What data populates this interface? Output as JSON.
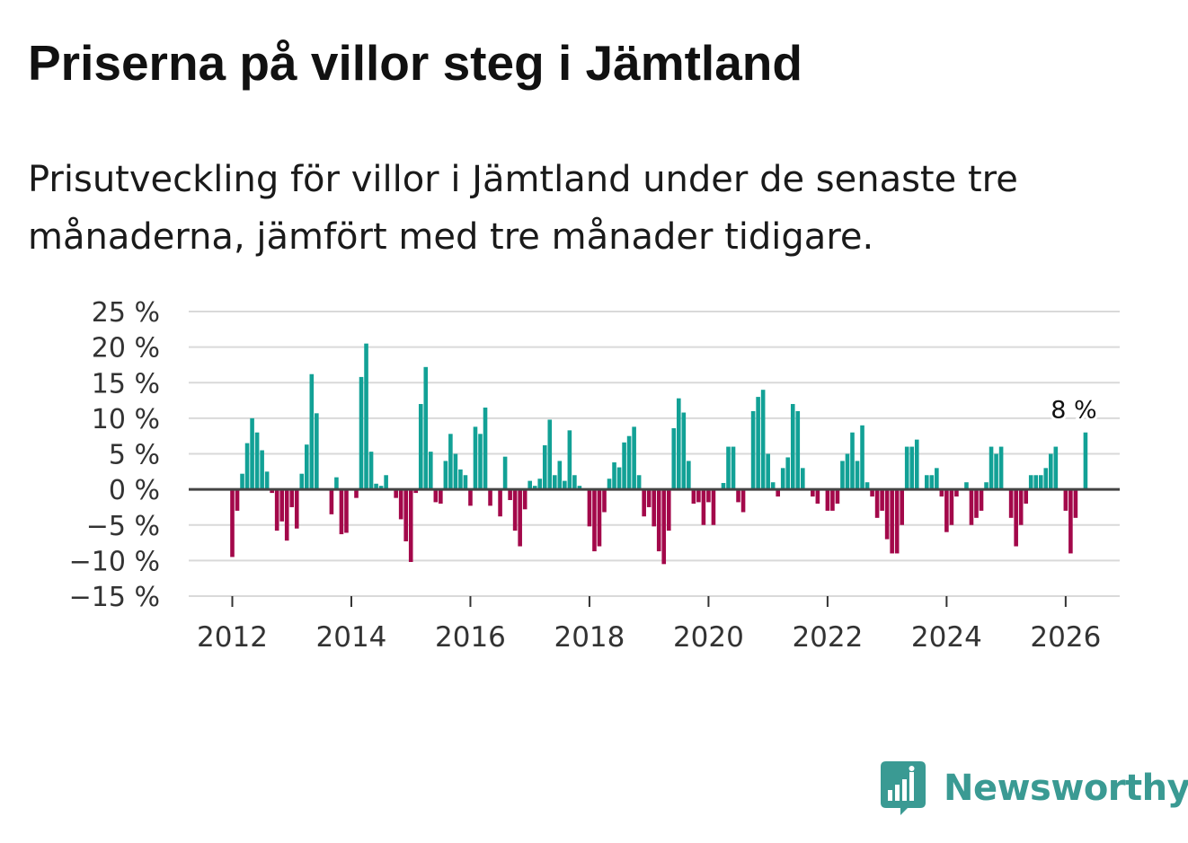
{
  "title": "Priserna på villor steg i Jämtland",
  "subtitle": "Prisutveckling för villor i Jämtland under de senaste tre månaderna, jämfört med tre månader tidigare.",
  "brand": {
    "name": "Newsworthy",
    "color": "#3a9a93",
    "icon": "bar-chart-logo-icon"
  },
  "colors": {
    "positive": "#12a196",
    "negative": "#a3084a",
    "grid": "#d9d9d9",
    "zero": "#444444"
  },
  "chart_data": {
    "type": "bar",
    "title": "",
    "xlabel": "",
    "ylabel": "",
    "ylim": [
      -15,
      25
    ],
    "y_ticks": [
      25,
      20,
      15,
      10,
      5,
      0,
      -5,
      -10,
      -15
    ],
    "y_tick_labels": [
      "25 %",
      "20 %",
      "15 %",
      "10 %",
      "5 %",
      "0 %",
      "−5 %",
      "−10 %",
      "−15 %"
    ],
    "x_ticks": [
      2012,
      2014,
      2016,
      2018,
      2020,
      2022,
      2024,
      2026
    ],
    "x_tick_labels": [
      "2012",
      "2014",
      "2016",
      "2018",
      "2020",
      "2022",
      "2024",
      "2026"
    ],
    "start": "2012-01",
    "end": "2026-03",
    "values": [
      -9.5,
      -3,
      2.2,
      6.5,
      10,
      8,
      5.5,
      2.5,
      -0.5,
      -5.8,
      -4.5,
      -7.2,
      -2.5,
      -5.5,
      2.2,
      6.3,
      16.2,
      10.7,
      0,
      0,
      -3.5,
      1.7,
      -6.3,
      -6.1,
      0,
      -1.2,
      15.8,
      20.5,
      5.3,
      0.8,
      0.5,
      2,
      0,
      -1.2,
      -4.2,
      -7.3,
      -10.2,
      -0.5,
      12,
      17.2,
      5.3,
      -1.8,
      -2,
      4,
      7.8,
      5,
      2.8,
      2,
      -2.3,
      8.8,
      7.8,
      11.5,
      -2.3,
      0,
      -3.8,
      4.6,
      -1.5,
      -5.8,
      -8,
      -2.8,
      1.2,
      0.5,
      1.5,
      6.2,
      9.8,
      2,
      4,
      1.2,
      8.3,
      2,
      0.5,
      0,
      -5.2,
      -8.7,
      -8,
      -3.2,
      1.5,
      3.8,
      3.1,
      6.6,
      7.5,
      8.8,
      2,
      -3.8,
      -2.5,
      -5.2,
      -8.7,
      -10.5,
      -5.8,
      8.6,
      12.8,
      10.8,
      4,
      -2,
      -1.8,
      -5,
      -1.8,
      -5,
      0,
      0.9,
      6,
      6,
      -1.8,
      -3.2,
      0,
      11,
      13,
      14,
      5,
      1,
      -1,
      3,
      4.5,
      12,
      11,
      3,
      0,
      -1,
      -2,
      0,
      -3,
      -3,
      -2,
      4,
      5,
      8,
      4,
      9,
      1,
      -1,
      -4,
      -3,
      -7,
      -9,
      -9,
      -5,
      6,
      6,
      7,
      0,
      2,
      2,
      3,
      -1,
      -6,
      -5,
      -1,
      0,
      1,
      -5,
      -4,
      -3,
      1,
      6,
      5,
      6,
      0,
      -4,
      -8,
      -5,
      -2,
      2,
      2,
      2,
      3,
      5,
      6,
      0,
      -3,
      -9,
      -4,
      0,
      8
    ],
    "annotation": {
      "label": "8 %",
      "value": 8,
      "date": "2026-03"
    }
  }
}
